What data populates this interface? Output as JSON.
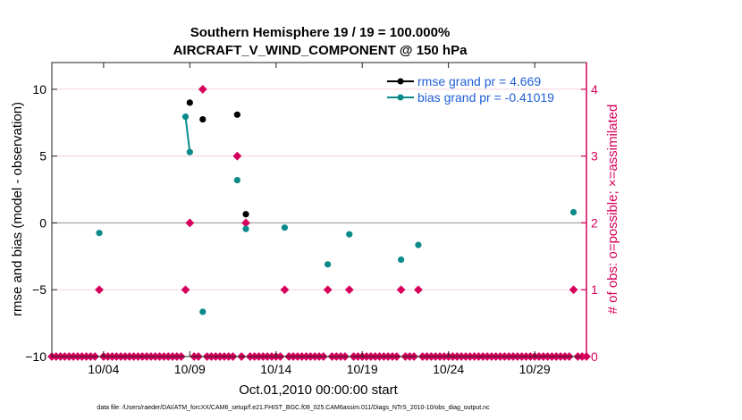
{
  "chart_data": {
    "type": "scatter",
    "title": [
      "Southern Hemisphere 19 / 19 = 100.000%",
      "AIRCRAFT_V_WIND_COMPONENT @ 150 hPa"
    ],
    "xlabel": "Oct.01,2010 00:00:00 start",
    "ylabel_left": "rmse and bias (model - observation)",
    "ylabel_right": "# of obs: o=possible; ×=assimilated",
    "xlim": [
      1,
      32
    ],
    "ylim_left": [
      -10,
      12
    ],
    "ylim_right": [
      0,
      4.4
    ],
    "xticks": [
      {
        "x": 4,
        "label": "10/04"
      },
      {
        "x": 9,
        "label": "10/09"
      },
      {
        "x": 14,
        "label": "10/14"
      },
      {
        "x": 19,
        "label": "10/19"
      },
      {
        "x": 24,
        "label": "10/24"
      },
      {
        "x": 29,
        "label": "10/29"
      }
    ],
    "yticks_left": [
      {
        "v": -10,
        "label": "−10"
      },
      {
        "v": -5,
        "label": "−5"
      },
      {
        "v": 0,
        "label": "0"
      },
      {
        "v": 5,
        "label": "5"
      },
      {
        "v": 10,
        "label": "10"
      }
    ],
    "yticks_right": [
      {
        "v": 0,
        "label": "0"
      },
      {
        "v": 1,
        "label": "1"
      },
      {
        "v": 2,
        "label": "2"
      },
      {
        "v": 3,
        "label": "3"
      },
      {
        "v": 4,
        "label": "4"
      }
    ],
    "legend": [
      {
        "name": "rmse grand pr = 4.669",
        "color": "#000000"
      },
      {
        "name": "bias grand pr = -0.41019",
        "color": "#0b8a8a"
      }
    ],
    "colors": {
      "rmse": "#000000",
      "bias": "#0b8a8a",
      "obs": "#d6005c",
      "zero": "#aaaaaa",
      "grid": "#f2c4d6"
    },
    "rmse_points": [
      [
        9,
        9.0
      ],
      [
        9.75,
        7.75
      ],
      [
        11.75,
        8.1
      ],
      [
        12.25,
        0.65
      ]
    ],
    "rmse_line": [],
    "bias_points": [
      [
        3.75,
        -0.75
      ],
      [
        8.75,
        7.95
      ],
      [
        9.0,
        5.3
      ],
      [
        9.75,
        -6.65
      ],
      [
        11.75,
        3.2
      ],
      [
        12.25,
        -0.45
      ],
      [
        14.5,
        -0.35
      ],
      [
        17.0,
        -3.1
      ],
      [
        18.25,
        -0.85
      ],
      [
        21.25,
        -2.75
      ],
      [
        22.25,
        -1.65
      ],
      [
        31.25,
        0.8
      ]
    ],
    "bias_line": [
      [
        8.75,
        7.95
      ],
      [
        9.0,
        5.3
      ]
    ],
    "obs_possible": {
      "x_start": 1,
      "x_step": 0.25,
      "count": 125,
      "nonzero": [
        [
          3.75,
          1
        ],
        [
          8.75,
          1
        ],
        [
          9.0,
          2
        ],
        [
          9.75,
          4
        ],
        [
          11.75,
          3
        ],
        [
          12.25,
          2
        ],
        [
          14.5,
          1
        ],
        [
          17.0,
          1
        ],
        [
          18.25,
          1
        ],
        [
          21.25,
          1
        ],
        [
          22.25,
          1
        ],
        [
          31.25,
          1
        ]
      ]
    }
  },
  "footer": "data file: /Users/raeder/DAI/ATM_forcXX/CAM6_setup/f.e21.FHIST_BGC.f09_025.CAM6assim.011/Diags_NTrS_2010-10/obs_diag_output.nc"
}
